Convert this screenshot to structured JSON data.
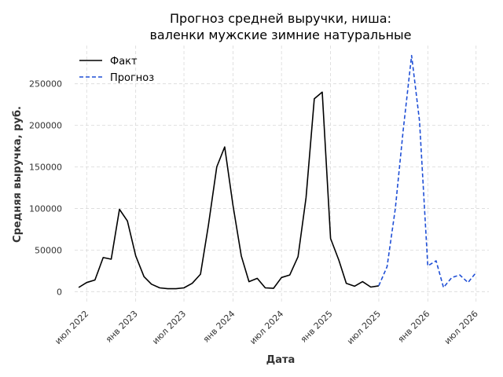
{
  "chart_data": {
    "type": "line",
    "title_line1": "Прогноз средней выручки, ниша:",
    "title_line2": "валенки мужские зимние натуральные",
    "xlabel": "Дата",
    "ylabel": "Средняя выручка, руб.",
    "ylim": [
      -12000,
      296000
    ],
    "xlim": [
      "2022-05-17",
      "2026-08-18"
    ],
    "grid": true,
    "legend_position": "top-left",
    "yticks": [
      0,
      50000,
      100000,
      150000,
      200000,
      250000
    ],
    "ytick_labels": [
      "0",
      "50000",
      "100000",
      "150000",
      "200000",
      "250000"
    ],
    "xticks": [
      {
        "date": "2022-07-01",
        "label": "июл 2022"
      },
      {
        "date": "2023-01-01",
        "label": "янв 2023"
      },
      {
        "date": "2023-07-01",
        "label": "июл 2023"
      },
      {
        "date": "2024-01-01",
        "label": "янв 2024"
      },
      {
        "date": "2024-07-01",
        "label": "июл 2024"
      },
      {
        "date": "2025-01-01",
        "label": "янв 2025"
      },
      {
        "date": "2025-07-01",
        "label": "июл 2025"
      },
      {
        "date": "2026-01-01",
        "label": "янв 2026"
      },
      {
        "date": "2026-07-01",
        "label": "июл 2026"
      }
    ],
    "series": [
      {
        "name": "Факт",
        "color": "#000000",
        "dash": false,
        "points": [
          [
            "2022-06-01",
            5000
          ],
          [
            "2022-07-01",
            11000
          ],
          [
            "2022-08-01",
            14000
          ],
          [
            "2022-09-01",
            41000
          ],
          [
            "2022-10-01",
            39000
          ],
          [
            "2022-11-01",
            99000
          ],
          [
            "2022-12-01",
            85000
          ],
          [
            "2023-01-01",
            43000
          ],
          [
            "2023-02-01",
            18000
          ],
          [
            "2023-03-01",
            9000
          ],
          [
            "2023-04-01",
            4500
          ],
          [
            "2023-05-01",
            3500
          ],
          [
            "2023-06-01",
            3500
          ],
          [
            "2023-07-01",
            4500
          ],
          [
            "2023-08-01",
            10000
          ],
          [
            "2023-09-01",
            21000
          ],
          [
            "2023-10-01",
            80000
          ],
          [
            "2023-11-01",
            150000
          ],
          [
            "2023-12-01",
            174000
          ],
          [
            "2024-01-01",
            104000
          ],
          [
            "2024-02-01",
            43000
          ],
          [
            "2024-03-01",
            12000
          ],
          [
            "2024-04-01",
            16000
          ],
          [
            "2024-05-01",
            4500
          ],
          [
            "2024-06-01",
            4000
          ],
          [
            "2024-07-01",
            17000
          ],
          [
            "2024-08-01",
            20000
          ],
          [
            "2024-09-01",
            42000
          ],
          [
            "2024-10-01",
            113000
          ],
          [
            "2024-11-01",
            232000
          ],
          [
            "2024-12-01",
            240000
          ],
          [
            "2025-01-01",
            64000
          ],
          [
            "2025-02-01",
            38000
          ],
          [
            "2025-03-01",
            10000
          ],
          [
            "2025-04-01",
            6500
          ],
          [
            "2025-05-01",
            12000
          ],
          [
            "2025-06-01",
            5500
          ],
          [
            "2025-07-01",
            7000
          ]
        ]
      },
      {
        "name": "Прогноз",
        "color": "#1f4fd6",
        "dash": true,
        "points": [
          [
            "2025-07-01",
            7000
          ],
          [
            "2025-08-01",
            30000
          ],
          [
            "2025-09-01",
            100000
          ],
          [
            "2025-10-01",
            195000
          ],
          [
            "2025-11-01",
            284000
          ],
          [
            "2025-12-01",
            205000
          ],
          [
            "2026-01-01",
            31000
          ],
          [
            "2026-02-01",
            37000
          ],
          [
            "2026-03-01",
            5000
          ],
          [
            "2026-04-01",
            17000
          ],
          [
            "2026-05-01",
            20000
          ],
          [
            "2026-06-01",
            11000
          ],
          [
            "2026-07-01",
            23000
          ]
        ]
      }
    ]
  }
}
